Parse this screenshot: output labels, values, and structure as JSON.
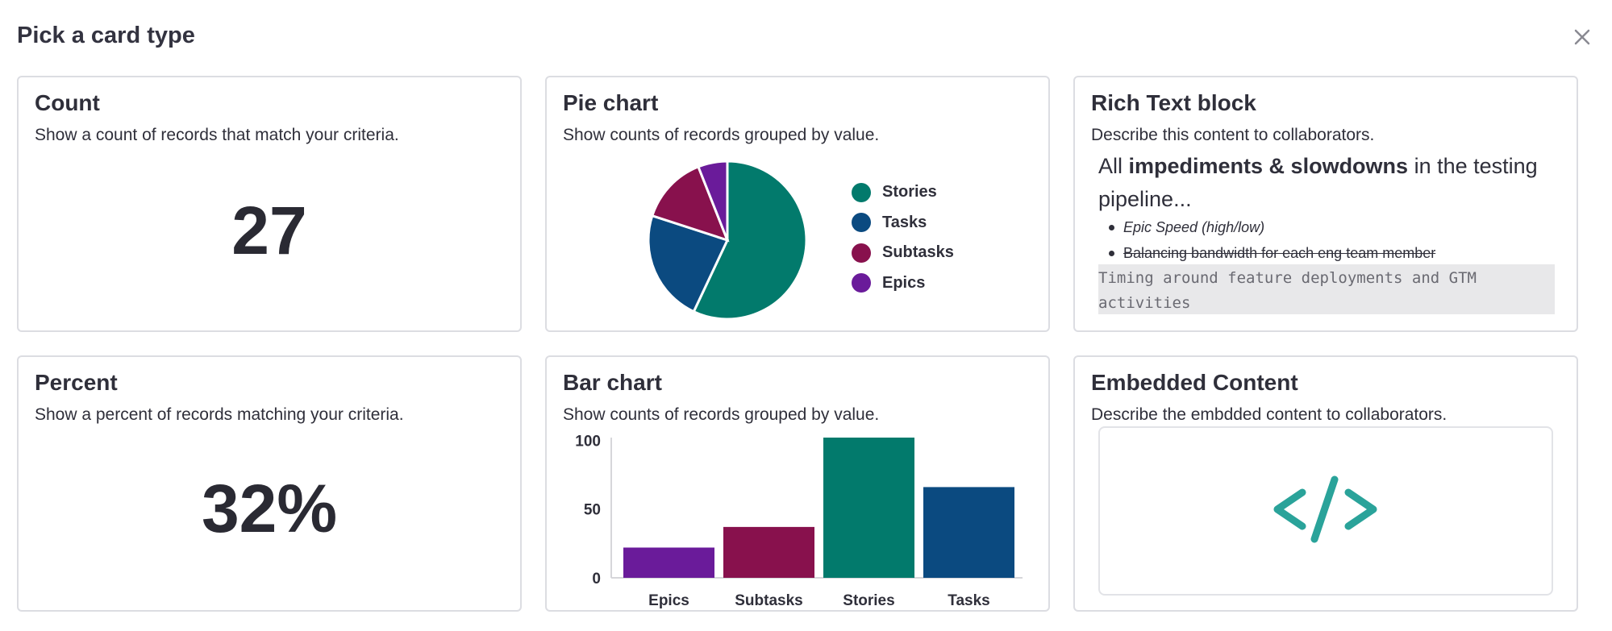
{
  "dialog": {
    "title": "Pick a card type",
    "close_icon": "close-icon"
  },
  "cards": {
    "count": {
      "title": "Count",
      "description": "Show a count of records that match your criteria.",
      "value": "27"
    },
    "pie": {
      "title": "Pie chart",
      "description": "Show counts of records grouped by value."
    },
    "richtext": {
      "title": "Rich Text block",
      "description": "Describe this content to collaborators.",
      "headline_prefix": "All ",
      "headline_bold": "impediments & slowdowns",
      "headline_suffix": " in the testing pipeline...",
      "list": [
        "Epic Speed (high/low)",
        "Balancing bandwidth for each eng team member"
      ],
      "code": "Timing around feature deployments and GTM activities"
    },
    "percent": {
      "title": "Percent",
      "description": "Show a percent of records matching your criteria.",
      "value": "32%"
    },
    "bar": {
      "title": "Bar chart",
      "description": "Show counts of records grouped by value."
    },
    "embed": {
      "title": "Embedded Content",
      "description": "Describe the embdded content to collaborators.",
      "icon": "code-brackets-icon"
    }
  },
  "chart_data": [
    {
      "type": "pie",
      "title": "",
      "legend": "right",
      "series": [
        {
          "name": "Stories",
          "value": 57,
          "color": "#027a6c"
        },
        {
          "name": "Tasks",
          "value": 23,
          "color": "#0b4a80"
        },
        {
          "name": "Subtasks",
          "value": 14,
          "color": "#88114d"
        },
        {
          "name": "Epics",
          "value": 6,
          "color": "#6a1b9a"
        }
      ]
    },
    {
      "type": "bar",
      "title": "",
      "categories": [
        "Epics",
        "Subtasks",
        "Stories",
        "Tasks"
      ],
      "values": [
        22,
        37,
        102,
        66
      ],
      "colors": [
        "#6a1b9a",
        "#88114d",
        "#027a6c",
        "#0b4a80"
      ],
      "yticks": [
        0,
        50,
        100
      ],
      "ylim": [
        0,
        102
      ],
      "xlabel": "",
      "ylabel": ""
    }
  ]
}
